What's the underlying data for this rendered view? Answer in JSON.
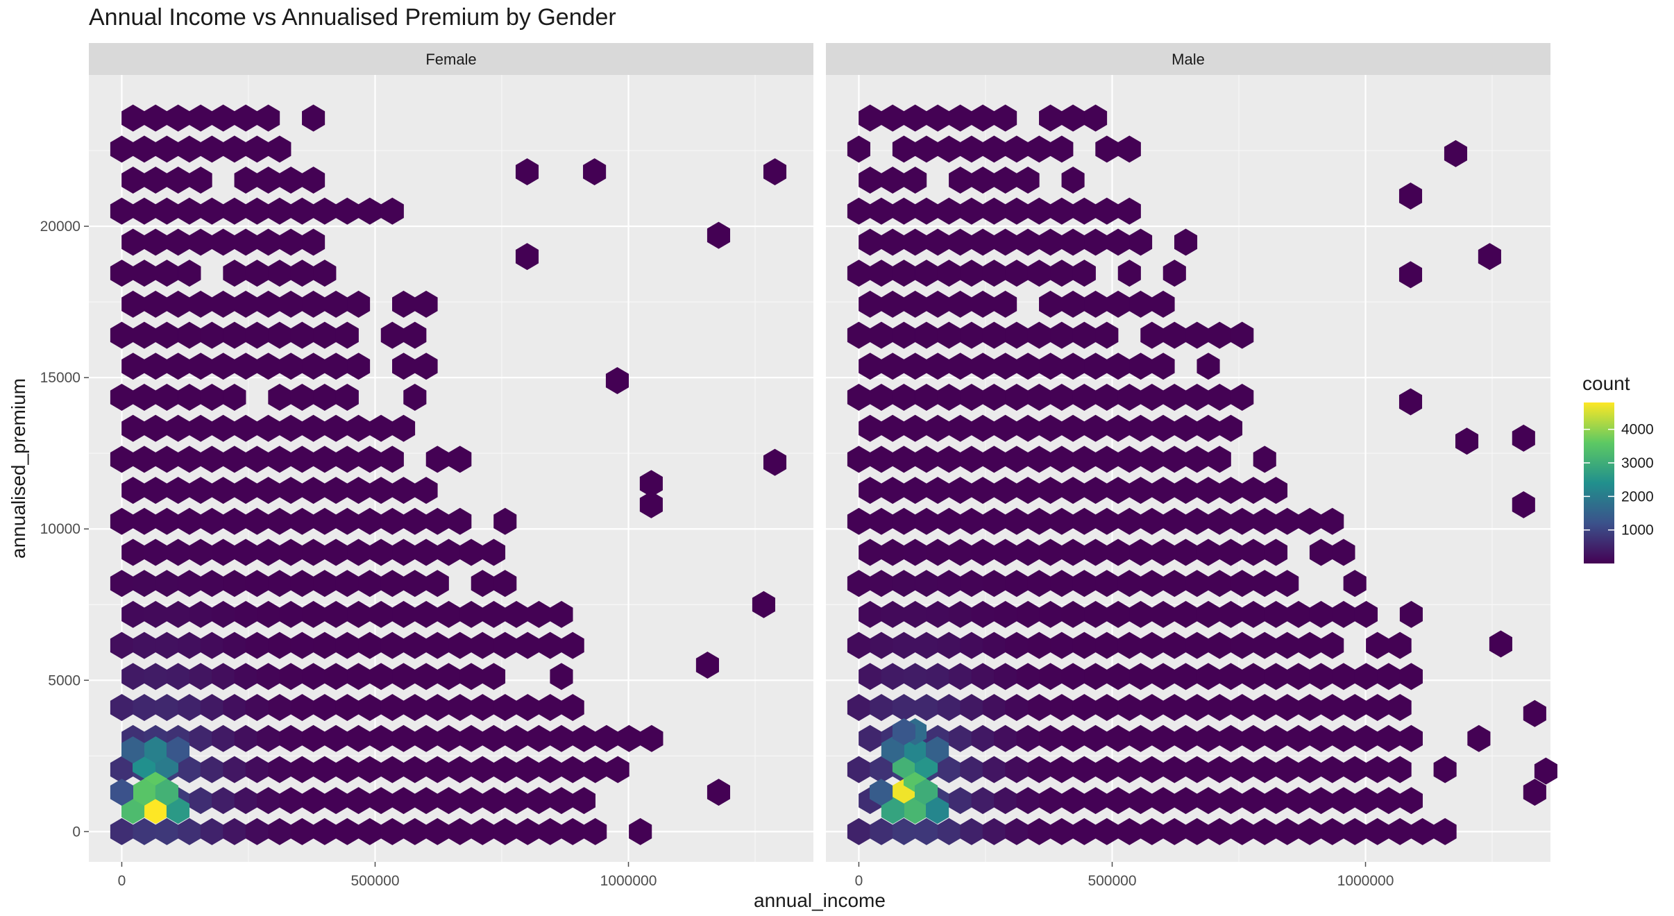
{
  "chart_data": {
    "type": "heatmap",
    "geom": "hexbin",
    "title": "Annual Income vs Annualised Premium by Gender",
    "xlabel": "annual_income",
    "ylabel": "annualised_premium",
    "x_ticks": [
      0,
      500000,
      1000000
    ],
    "x_tick_labels": [
      "0",
      "500000",
      "1000000"
    ],
    "y_ticks": [
      0,
      5000,
      10000,
      15000,
      20000
    ],
    "y_tick_labels": [
      "0",
      "5000",
      "10000",
      "15000",
      "20000"
    ],
    "xlim": [
      -65000,
      1365000
    ],
    "ylim": [
      -1000,
      25000
    ],
    "grid": true,
    "legend": {
      "title": "count",
      "position": "right",
      "breaks": [
        1000,
        2000,
        3000,
        4000
      ],
      "break_labels": [
        "1000",
        "2000",
        "3000",
        "4000"
      ],
      "range": [
        1,
        4800
      ],
      "colors": [
        "#440154",
        "#3b528b",
        "#21908d",
        "#5dc963",
        "#fde725"
      ]
    },
    "hex": {
      "x_step": 44500,
      "y_step": 2050
    },
    "facets": [
      {
        "label": "Female",
        "high_counts": [
          {
            "x": 67000,
            "y": 700,
            "count": 4800
          },
          {
            "x": 67000,
            "y": 1750,
            "count": 3600
          },
          {
            "x": 22000,
            "y": 700,
            "count": 3300
          },
          {
            "x": 111000,
            "y": 700,
            "count": 2600
          },
          {
            "x": 44000,
            "y": 1300,
            "count": 3500
          },
          {
            "x": 89000,
            "y": 1300,
            "count": 3100
          },
          {
            "x": 44000,
            "y": 2200,
            "count": 2400
          },
          {
            "x": 89000,
            "y": 2200,
            "count": 2000
          },
          {
            "x": 67000,
            "y": 2700,
            "count": 2100
          },
          {
            "x": 22000,
            "y": 2700,
            "count": 1500
          },
          {
            "x": 111000,
            "y": 2700,
            "count": 1300
          },
          {
            "x": 0,
            "y": 1300,
            "count": 1200
          }
        ],
        "sparse_cells": [
          {
            "x": 800000,
            "y": 21800
          },
          {
            "x": 933000,
            "y": 21800
          },
          {
            "x": 1289000,
            "y": 21800
          },
          {
            "x": 1178000,
            "y": 19700
          },
          {
            "x": 800000,
            "y": 19000
          },
          {
            "x": 1289000,
            "y": 12200
          },
          {
            "x": 1267000,
            "y": 7500
          },
          {
            "x": 1156000,
            "y": 5500
          },
          {
            "x": 1178000,
            "y": 1300
          },
          {
            "x": 1045000,
            "y": 11500
          },
          {
            "x": 1045000,
            "y": 10800
          },
          {
            "x": 978000,
            "y": 14900
          }
        ]
      },
      {
        "label": "Male",
        "high_counts": [
          {
            "x": 89000,
            "y": 1300,
            "count": 4700
          },
          {
            "x": 111000,
            "y": 1750,
            "count": 3500
          },
          {
            "x": 111000,
            "y": 700,
            "count": 3200
          },
          {
            "x": 67000,
            "y": 700,
            "count": 2800
          },
          {
            "x": 133000,
            "y": 1300,
            "count": 3000
          },
          {
            "x": 89000,
            "y": 2200,
            "count": 3100
          },
          {
            "x": 133000,
            "y": 2200,
            "count": 2500
          },
          {
            "x": 111000,
            "y": 2700,
            "count": 2200
          },
          {
            "x": 155000,
            "y": 700,
            "count": 2200
          },
          {
            "x": 67000,
            "y": 2700,
            "count": 1600
          },
          {
            "x": 44000,
            "y": 1300,
            "count": 1400
          },
          {
            "x": 155000,
            "y": 2700,
            "count": 1500
          },
          {
            "x": 111000,
            "y": 3300,
            "count": 1700
          },
          {
            "x": 89000,
            "y": 3300,
            "count": 1300
          }
        ],
        "sparse_cells": [
          {
            "x": 1178000,
            "y": 22400
          },
          {
            "x": 1089000,
            "y": 21000
          },
          {
            "x": 1245000,
            "y": 19000
          },
          {
            "x": 1312000,
            "y": 13000
          },
          {
            "x": 1312000,
            "y": 10800
          },
          {
            "x": 1267000,
            "y": 6200
          },
          {
            "x": 1334000,
            "y": 3900
          },
          {
            "x": 1356000,
            "y": 2000
          },
          {
            "x": 1334000,
            "y": 1300
          },
          {
            "x": 1200000,
            "y": 12900
          },
          {
            "x": 1089000,
            "y": 14200
          },
          {
            "x": 1089000,
            "y": 18400
          }
        ]
      }
    ]
  }
}
